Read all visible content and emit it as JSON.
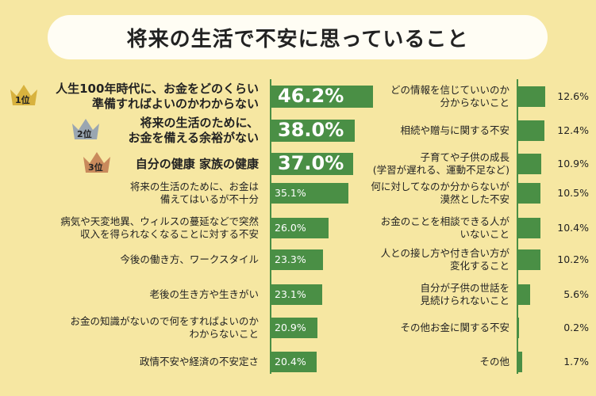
{
  "title": "将来の生活で不安に思っていること",
  "chart_data": {
    "type": "bar",
    "orientation": "horizontal",
    "unit": "%",
    "left": [
      {
        "label": "人生100年時代に、お金をどのくらい\n準備すればよいのかわからない",
        "value": 46.2,
        "display": "46.2%",
        "rank": "1位",
        "crown_color": "#d8b23e"
      },
      {
        "label": "将来の生活のために、\nお金を備える余裕がない",
        "value": 38.0,
        "display": "38.0%",
        "rank": "2位",
        "crown_color": "#9aa6b1"
      },
      {
        "label": "自分の健康 家族の健康",
        "value": 37.0,
        "display": "37.0%",
        "rank": "3位",
        "crown_color": "#c98a5c"
      },
      {
        "label": "将来の生活のために、お金は\n備えてはいるが不十分",
        "value": 35.1,
        "display": "35.1%"
      },
      {
        "label": "病気や天変地異、ウィルスの蔓延などで突然\n収入を得られなくなることに対する不安",
        "value": 26.0,
        "display": "26.0%"
      },
      {
        "label": "今後の働き方、ワークスタイル",
        "value": 23.3,
        "display": "23.3%"
      },
      {
        "label": "老後の生き方や生きがい",
        "value": 23.1,
        "display": "23.1%"
      },
      {
        "label": "お金の知識がないので何をすればよいのか\nわからないこと",
        "value": 20.9,
        "display": "20.9%"
      },
      {
        "label": "政情不安や経済の不安定さ",
        "value": 20.4,
        "display": "20.4%"
      }
    ],
    "right": [
      {
        "label": "どの情報を信じていいのか\n分からないこと",
        "value": 12.6,
        "display": "12.6%"
      },
      {
        "label": "相続や贈与に関する不安",
        "value": 12.4,
        "display": "12.4%"
      },
      {
        "label": "子育てや子供の成長\n(学習が遅れる、運動不足など)",
        "value": 10.9,
        "display": "10.9%"
      },
      {
        "label": "何に対してなのか分からないが\n漠然とした不安",
        "value": 10.5,
        "display": "10.5%"
      },
      {
        "label": "お金のことを相談できる人が\nいないこと",
        "value": 10.4,
        "display": "10.4%"
      },
      {
        "label": "人との接し方や付き合い方が\n変化すること",
        "value": 10.2,
        "display": "10.2%"
      },
      {
        "label": "自分が子供の世話を\n見続けられないこと",
        "value": 5.6,
        "display": "5.6%"
      },
      {
        "label": "その他お金に関する不安",
        "value": 0.2,
        "display": "0.2%"
      },
      {
        "label": "その他",
        "value": 1.7,
        "display": "1.7%"
      }
    ]
  }
}
